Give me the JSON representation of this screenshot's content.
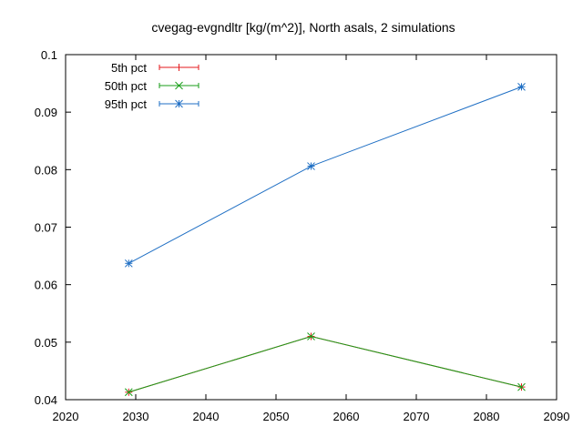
{
  "chart_data": {
    "type": "line",
    "title": "cvegag-evgndltr [kg/(m^2)], North asals, 2 simulations",
    "xlabel": "",
    "ylabel": "",
    "xlim": [
      2020,
      2090
    ],
    "ylim": [
      0.04,
      0.1
    ],
    "xticks": [
      "2020",
      "2030",
      "2040",
      "2050",
      "2060",
      "2070",
      "2080",
      "2090"
    ],
    "yticks": [
      "0.04",
      "0.05",
      "0.06",
      "0.07",
      "0.08",
      "0.09",
      "0.1"
    ],
    "grid": false,
    "legend_position": "top-left",
    "x": [
      2029,
      2055,
      2085
    ],
    "series": [
      {
        "name": "5th pct",
        "values": [
          0.0413,
          0.051,
          0.0422
        ],
        "color": "#e41a1c",
        "marker": "plus"
      },
      {
        "name": "50th pct",
        "values": [
          0.0413,
          0.051,
          0.0422
        ],
        "color": "#1a9e1a",
        "marker": "cross"
      },
      {
        "name": "95th pct",
        "values": [
          0.0637,
          0.0806,
          0.0944
        ],
        "color": "#1f6fc4",
        "marker": "star"
      }
    ]
  }
}
